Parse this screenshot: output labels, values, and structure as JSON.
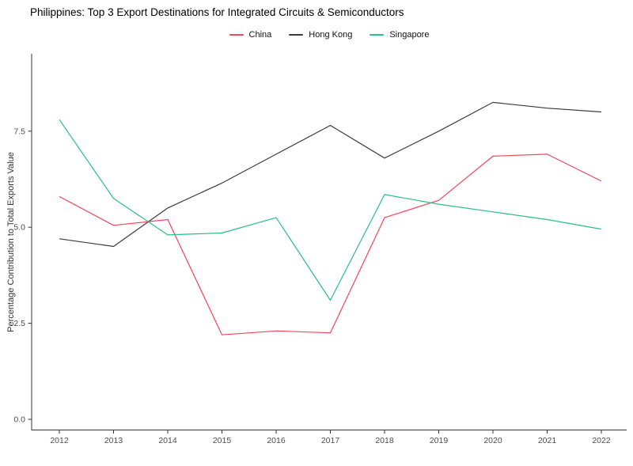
{
  "title": "Philippines: Top 3 Export Destinations for Integrated Circuits & Semiconductors",
  "legend": {
    "items": [
      {
        "label": "China",
        "color": "#F4455A"
      },
      {
        "label": "Hong Kong",
        "color": "#3C3C3C"
      },
      {
        "label": "Singapore",
        "color": "#2ABD8E"
      }
    ]
  },
  "colors": {
    "axis_line": "#333333",
    "tick_text": "#4D4D4D",
    "title_text": "#000000"
  },
  "chart_data": {
    "type": "line",
    "title": "Philippines: Top 3 Export Destinations for Integrated Circuits & Semiconductors",
    "xlabel": "",
    "ylabel": "Percentage Contribution to Total Exports Value",
    "x": [
      2012,
      2013,
      2014,
      2015,
      2016,
      2017,
      2018,
      2019,
      2020,
      2021,
      2022
    ],
    "x_tick_labels": [
      "2012",
      "2013",
      "2014",
      "2015",
      "2016",
      "2017",
      "2018",
      "2019",
      "2020",
      "2021",
      "2022"
    ],
    "yticks": [
      0.0,
      2.5,
      5.0,
      7.5
    ],
    "y_tick_labels": [
      "0.0",
      "2.5",
      "5.0",
      "7.5"
    ],
    "ylim": [
      -0.3,
      9.5
    ],
    "grid": false,
    "legend_position": "top-center",
    "series": [
      {
        "name": "China",
        "color": "#F4455A",
        "values": [
          5.8,
          5.05,
          5.2,
          2.2,
          2.3,
          2.25,
          5.25,
          5.7,
          6.85,
          6.9,
          6.2
        ]
      },
      {
        "name": "Hong Kong",
        "color": "#3C3C3C",
        "values": [
          4.7,
          4.5,
          5.5,
          6.15,
          6.9,
          7.65,
          6.8,
          7.5,
          8.25,
          8.1,
          8.0
        ]
      },
      {
        "name": "Singapore",
        "color": "#2ABD8E",
        "values": [
          7.8,
          5.75,
          4.8,
          4.85,
          5.25,
          3.1,
          5.85,
          5.6,
          5.4,
          5.2,
          4.95
        ]
      }
    ]
  }
}
